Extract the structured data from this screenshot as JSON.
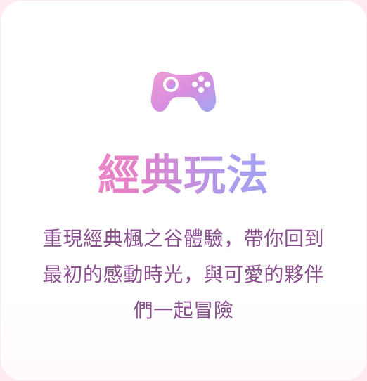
{
  "card": {
    "title": "經典玩法",
    "description": "重現經典楓之谷體驗，帶你回到最初的感動時光，與可愛的夥伴們一起冒險"
  },
  "icons": {
    "main": "gamepad-icon"
  },
  "colors": {
    "title_gradient_start": "#ef9ed0",
    "title_gradient_mid": "#e77fc6",
    "title_gradient_end": "#9fa8f2",
    "description_text": "#8a4f8f",
    "card_background": "#ffffff",
    "page_background": "#ffe9f3"
  }
}
